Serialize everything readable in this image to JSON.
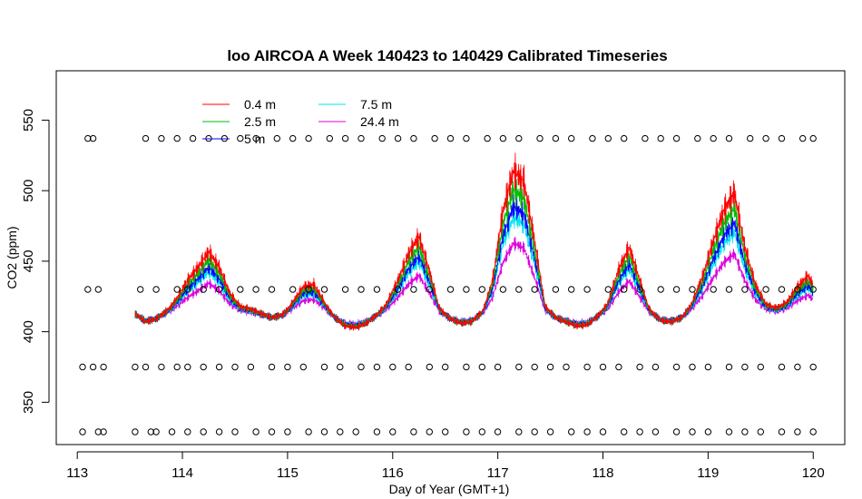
{
  "chart_data": {
    "type": "line",
    "title": "loo AIRCOA A  Week 140423 to 140429  Calibrated Timeseries",
    "xlabel": "Day of Year (GMT+1)",
    "ylabel": "CO2 (ppm)",
    "xlim": [
      112.8,
      120.3
    ],
    "ylim": [
      320,
      585
    ],
    "x_ticks": [
      113,
      114,
      115,
      116,
      117,
      118,
      119,
      120
    ],
    "y_ticks": [
      350,
      400,
      450,
      500,
      550
    ],
    "legend_position": "top-left",
    "legend_columns": 2,
    "series": [
      {
        "name": "0.4 m",
        "color": "#ff0000",
        "weight": 1.0
      },
      {
        "name": "2.5 m",
        "color": "#00bb00",
        "weight": 0.8
      },
      {
        "name": "5 m",
        "color": "#0000ff",
        "weight": 0.62
      },
      {
        "name": "7.5 m",
        "color": "#00e5ee",
        "weight": 0.5
      },
      {
        "name": "24.4 m",
        "color": "#dd00dd",
        "weight": 0.22
      }
    ],
    "baseline": {
      "x": [
        113.55,
        113.65,
        113.75,
        113.85,
        113.95,
        114.05,
        114.15,
        114.25,
        114.35,
        114.45,
        114.55,
        114.65,
        114.75,
        114.85,
        114.95,
        115.05,
        115.15,
        115.25,
        115.35,
        115.45,
        115.55,
        115.65,
        115.75,
        115.85,
        115.95,
        116.05,
        116.15,
        116.25,
        116.35,
        116.45,
        116.55,
        116.65,
        116.75,
        116.85,
        116.95,
        117.05,
        117.15,
        117.25,
        117.35,
        117.45,
        117.55,
        117.65,
        117.75,
        117.85,
        117.95,
        118.05,
        118.15,
        118.25,
        118.35,
        118.45,
        118.55,
        118.65,
        118.75,
        118.85,
        118.95,
        119.05,
        119.15,
        119.25,
        119.35,
        119.45,
        119.55,
        119.65,
        119.75,
        119.85,
        119.95,
        120.0
      ],
      "y": [
        413,
        407,
        409,
        415,
        422,
        430,
        436,
        443,
        436,
        424,
        418,
        416,
        413,
        410,
        412,
        420,
        427,
        428,
        420,
        410,
        404,
        403,
        406,
        412,
        420,
        430,
        442,
        450,
        434,
        416,
        409,
        406,
        407,
        414,
        430,
        462,
        480,
        475,
        448,
        418,
        410,
        407,
        404,
        405,
        411,
        420,
        435,
        445,
        430,
        415,
        408,
        407,
        410,
        420,
        432,
        448,
        462,
        470,
        445,
        428,
        419,
        417,
        420,
        427,
        432,
        428
      ]
    },
    "calibration_points": {
      "levels": [
        329,
        375,
        430,
        537
      ],
      "x_by_level": [
        [
          113.05,
          113.2,
          113.25,
          113.55,
          113.7,
          113.75,
          113.9,
          114.05,
          114.2,
          114.35,
          114.5,
          114.7,
          114.85,
          115.0,
          115.2,
          115.35,
          115.5,
          115.65,
          115.85,
          116.0,
          116.2,
          116.35,
          116.5,
          116.7,
          116.85,
          117.0,
          117.2,
          117.35,
          117.5,
          117.7,
          117.85,
          118.0,
          118.2,
          118.35,
          118.5,
          118.7,
          118.85,
          119.0,
          119.2,
          119.35,
          119.5,
          119.7,
          119.85,
          120.0
        ],
        [
          113.05,
          113.15,
          113.25,
          113.55,
          113.65,
          113.8,
          113.95,
          114.05,
          114.2,
          114.35,
          114.5,
          114.65,
          114.85,
          115.0,
          115.15,
          115.35,
          115.5,
          115.7,
          115.85,
          116.0,
          116.15,
          116.35,
          116.5,
          116.7,
          116.85,
          117.0,
          117.2,
          117.35,
          117.5,
          117.65,
          117.85,
          118.0,
          118.15,
          118.35,
          118.5,
          118.7,
          118.85,
          119.0,
          119.2,
          119.35,
          119.5,
          119.7,
          119.85,
          120.0
        ],
        [
          113.1,
          113.2,
          113.6,
          113.75,
          113.95,
          114.05,
          114.2,
          114.35,
          114.55,
          114.7,
          114.85,
          115.05,
          115.2,
          115.35,
          115.55,
          115.7,
          115.85,
          116.05,
          116.2,
          116.35,
          116.55,
          116.7,
          116.85,
          117.05,
          117.2,
          117.35,
          117.55,
          117.7,
          117.85,
          118.05,
          118.2,
          118.35,
          118.55,
          118.7,
          118.85,
          119.05,
          119.2,
          119.35,
          119.55,
          119.7,
          119.85,
          120.0
        ],
        [
          113.1,
          113.15,
          113.65,
          113.8,
          113.95,
          114.1,
          114.25,
          114.4,
          114.55,
          114.7,
          114.9,
          115.05,
          115.2,
          115.4,
          115.55,
          115.7,
          115.9,
          116.05,
          116.2,
          116.4,
          116.55,
          116.7,
          116.9,
          117.05,
          117.2,
          117.4,
          117.55,
          117.7,
          117.9,
          118.05,
          118.2,
          118.4,
          118.55,
          118.7,
          118.9,
          119.05,
          119.2,
          119.4,
          119.55,
          119.7,
          119.9,
          120.0
        ]
      ]
    }
  }
}
